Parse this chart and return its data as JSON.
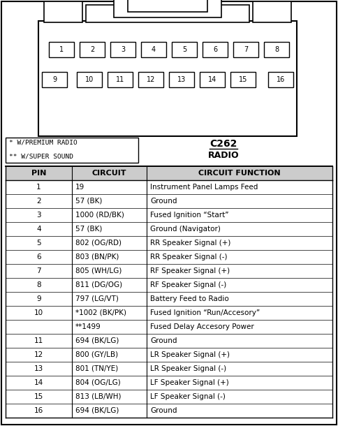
{
  "title_connector": "C262",
  "title_type": "RADIO",
  "note1": "* W/PREMIUM RADIO",
  "note2": "** W/SUPER SOUND",
  "col_headers": [
    "PIN",
    "CIRCUIT",
    "CIRCUIT FUNCTION"
  ],
  "rows": [
    [
      "1",
      "19",
      "Instrument Panel Lamps Feed"
    ],
    [
      "2",
      "57 (BK)",
      "Ground"
    ],
    [
      "3",
      "1000 (RD/BK)",
      "Fused Ignition “Start”"
    ],
    [
      "4",
      "57 (BK)",
      "Ground (Navigator)"
    ],
    [
      "5",
      "802 (OG/RD)",
      "RR Speaker Signal (+)"
    ],
    [
      "6",
      "803 (BN/PK)",
      "RR Speaker Signal (-)"
    ],
    [
      "7",
      "805 (WH/LG)",
      "RF Speaker Signal (+)"
    ],
    [
      "8",
      "811 (DG/OG)",
      "RF Speaker Signal (-)"
    ],
    [
      "9",
      "797 (LG/VT)",
      "Battery Feed to Radio"
    ],
    [
      "10",
      "*1002 (BK/PK)",
      "Fused Ignition “Run/Accesory”"
    ],
    [
      "",
      "**1499",
      "Fused Delay Accesory Power"
    ],
    [
      "11",
      "694 (BK/LG)",
      "Ground"
    ],
    [
      "12",
      "800 (GY/LB)",
      "LR Speaker Signal (+)"
    ],
    [
      "13",
      "801 (TN/YE)",
      "LR Speaker Signal (-)"
    ],
    [
      "14",
      "804 (OG/LG)",
      "LF Speaker Signal (+)"
    ],
    [
      "15",
      "813 (LB/WH)",
      "LF Speaker Signal (-)"
    ],
    [
      "16",
      "694 (BK/LG)",
      "Ground"
    ]
  ],
  "bg_color": "#ffffff",
  "border_color": "#000000",
  "header_bg": "#cccccc"
}
